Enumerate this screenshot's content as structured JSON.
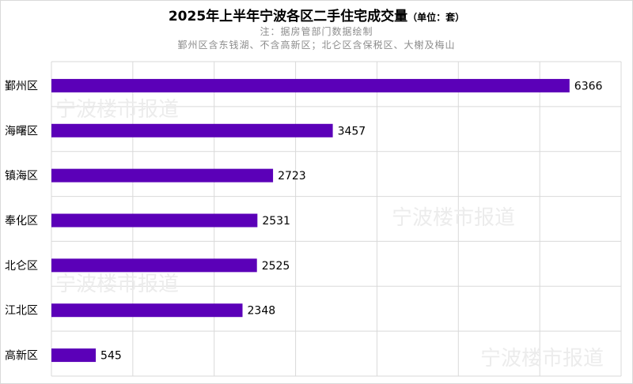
{
  "header": {
    "title": "2025年上半年宁波各区二手住宅成交量",
    "unit": "（单位：套）",
    "note_line1": "注：据房管部门数据绘制",
    "note_line2": "鄞州区含东钱湖、不含高新区；北仑区含保税区、大榭及梅山"
  },
  "watermark": {
    "text": "宁波楼市报道"
  },
  "chart_data": {
    "type": "bar",
    "orientation": "horizontal",
    "categories": [
      "鄞州区",
      "海曙区",
      "镇海区",
      "奉化区",
      "北仑区",
      "江北区",
      "高新区"
    ],
    "values": [
      6366,
      3457,
      2723,
      2531,
      2525,
      2348,
      545
    ],
    "data_labels": [
      "6366",
      "3457",
      "2723",
      "2531",
      "2525",
      "2348",
      "545"
    ],
    "xlim": [
      0,
      7000
    ],
    "grid": true,
    "bar_color": "#5b00b8"
  }
}
